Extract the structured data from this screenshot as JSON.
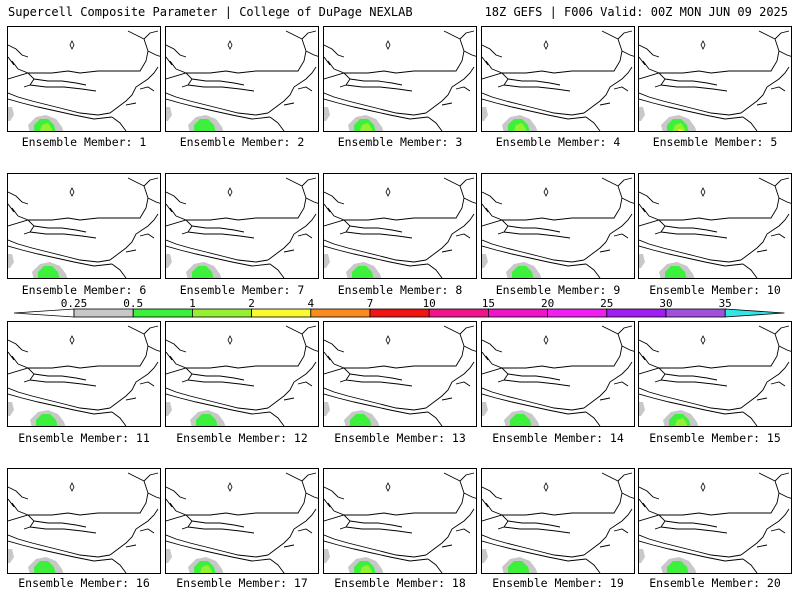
{
  "header": {
    "title": "Supercell Composite Parameter | College of DuPage NEXLAB",
    "run_info": "18Z GEFS | F006 Valid: 00Z MON JUN 09 2025"
  },
  "members": [
    {
      "label": "Ensemble Member: 1",
      "intensity": 2
    },
    {
      "label": "Ensemble Member: 2",
      "intensity": 1
    },
    {
      "label": "Ensemble Member: 3",
      "intensity": 2
    },
    {
      "label": "Ensemble Member: 4",
      "intensity": 2
    },
    {
      "label": "Ensemble Member: 5",
      "intensity": 3
    },
    {
      "label": "Ensemble Member: 6",
      "intensity": 1
    },
    {
      "label": "Ensemble Member: 7",
      "intensity": 1
    },
    {
      "label": "Ensemble Member: 8",
      "intensity": 1
    },
    {
      "label": "Ensemble Member: 9",
      "intensity": 1
    },
    {
      "label": "Ensemble Member: 10",
      "intensity": 1
    },
    {
      "label": "Ensemble Member: 11",
      "intensity": 1
    },
    {
      "label": "Ensemble Member: 12",
      "intensity": 1
    },
    {
      "label": "Ensemble Member: 13",
      "intensity": 1
    },
    {
      "label": "Ensemble Member: 14",
      "intensity": 1
    },
    {
      "label": "Ensemble Member: 15",
      "intensity": 2
    },
    {
      "label": "Ensemble Member: 16",
      "intensity": 1
    },
    {
      "label": "Ensemble Member: 17",
      "intensity": 2
    },
    {
      "label": "Ensemble Member: 18",
      "intensity": 2
    },
    {
      "label": "Ensemble Member: 19",
      "intensity": 1
    },
    {
      "label": "Ensemble Member: 20",
      "intensity": 1
    }
  ],
  "colorbar": {
    "labels": [
      "0.25",
      "0.5",
      "1",
      "2",
      "4",
      "7",
      "10",
      "15",
      "20",
      "25",
      "30",
      "35"
    ],
    "colors": [
      "#c8c8c8",
      "#3cf03c",
      "#96f032",
      "#fafa32",
      "#fa8c1e",
      "#f01414",
      "#f0148c",
      "#f014c8",
      "#f01ef0",
      "#a01ef0",
      "#a050dc",
      "#32e6e6"
    ]
  }
}
